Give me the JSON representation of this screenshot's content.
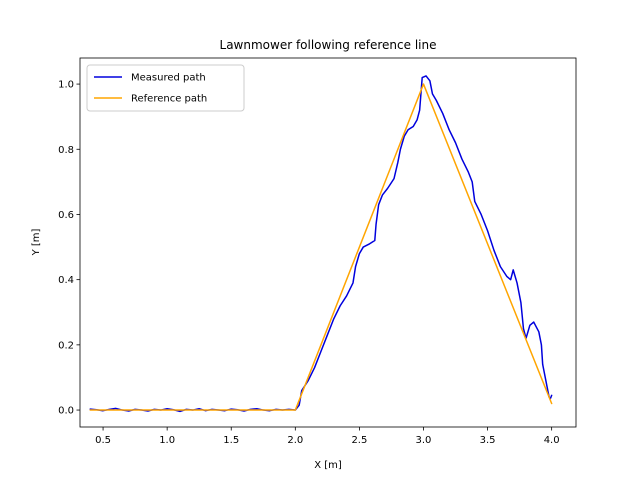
{
  "chart_data": {
    "type": "line",
    "title": "Lawnmower following reference line",
    "xlabel": "X [m]",
    "ylabel": "Y [m]",
    "xlim": [
      0.32,
      4.19
    ],
    "ylim": [
      -0.052,
      1.08
    ],
    "xticks": [
      0.5,
      1.0,
      1.5,
      2.0,
      2.5,
      3.0,
      3.5,
      4.0
    ],
    "yticks": [
      0.0,
      0.2,
      0.4,
      0.6,
      0.8,
      1.0
    ],
    "xtick_labels": [
      "0.5",
      "1.0",
      "1.5",
      "2.0",
      "2.5",
      "3.0",
      "3.5",
      "4.0"
    ],
    "ytick_labels": [
      "0.0",
      "0.2",
      "0.4",
      "0.6",
      "0.8",
      "1.0"
    ],
    "grid": false,
    "legend_position": "top-left",
    "series": [
      {
        "name": "Measured path",
        "color": "#0000dd",
        "points": [
          [
            0.4,
            0.003
          ],
          [
            0.45,
            0.001
          ],
          [
            0.5,
            -0.002
          ],
          [
            0.55,
            0.002
          ],
          [
            0.6,
            0.005
          ],
          [
            0.65,
            0.0
          ],
          [
            0.7,
            -0.003
          ],
          [
            0.75,
            0.002
          ],
          [
            0.8,
            0.0
          ],
          [
            0.85,
            -0.003
          ],
          [
            0.9,
            0.002
          ],
          [
            0.95,
            0.0
          ],
          [
            1.0,
            0.004
          ],
          [
            1.05,
            0.001
          ],
          [
            1.1,
            -0.004
          ],
          [
            1.15,
            0.002
          ],
          [
            1.2,
            0.0
          ],
          [
            1.25,
            0.004
          ],
          [
            1.3,
            -0.002
          ],
          [
            1.35,
            0.002
          ],
          [
            1.4,
            0.0
          ],
          [
            1.45,
            -0.002
          ],
          [
            1.5,
            0.003
          ],
          [
            1.55,
            0.001
          ],
          [
            1.6,
            -0.003
          ],
          [
            1.65,
            0.002
          ],
          [
            1.7,
            0.004
          ],
          [
            1.75,
            0.0
          ],
          [
            1.8,
            -0.002
          ],
          [
            1.85,
            0.002
          ],
          [
            1.9,
            0.0
          ],
          [
            1.95,
            0.002
          ],
          [
            2.0,
            0.0
          ],
          [
            2.03,
            0.015
          ],
          [
            2.05,
            0.06
          ],
          [
            2.1,
            0.09
          ],
          [
            2.15,
            0.13
          ],
          [
            2.2,
            0.18
          ],
          [
            2.25,
            0.23
          ],
          [
            2.3,
            0.28
          ],
          [
            2.35,
            0.32
          ],
          [
            2.4,
            0.35
          ],
          [
            2.45,
            0.39
          ],
          [
            2.47,
            0.44
          ],
          [
            2.5,
            0.48
          ],
          [
            2.53,
            0.5
          ],
          [
            2.58,
            0.51
          ],
          [
            2.62,
            0.52
          ],
          [
            2.63,
            0.57
          ],
          [
            2.65,
            0.63
          ],
          [
            2.68,
            0.66
          ],
          [
            2.72,
            0.68
          ],
          [
            2.77,
            0.71
          ],
          [
            2.8,
            0.76
          ],
          [
            2.82,
            0.8
          ],
          [
            2.85,
            0.84
          ],
          [
            2.88,
            0.86
          ],
          [
            2.92,
            0.87
          ],
          [
            2.95,
            0.89
          ],
          [
            2.97,
            0.92
          ],
          [
            2.98,
            0.97
          ],
          [
            2.99,
            1.02
          ],
          [
            3.02,
            1.025
          ],
          [
            3.05,
            1.01
          ],
          [
            3.07,
            0.97
          ],
          [
            3.1,
            0.95
          ],
          [
            3.15,
            0.91
          ],
          [
            3.2,
            0.86
          ],
          [
            3.25,
            0.82
          ],
          [
            3.3,
            0.77
          ],
          [
            3.35,
            0.73
          ],
          [
            3.38,
            0.7
          ],
          [
            3.4,
            0.64
          ],
          [
            3.45,
            0.6
          ],
          [
            3.5,
            0.55
          ],
          [
            3.55,
            0.49
          ],
          [
            3.6,
            0.44
          ],
          [
            3.65,
            0.41
          ],
          [
            3.68,
            0.4
          ],
          [
            3.7,
            0.43
          ],
          [
            3.73,
            0.39
          ],
          [
            3.76,
            0.33
          ],
          [
            3.78,
            0.25
          ],
          [
            3.8,
            0.22
          ],
          [
            3.83,
            0.26
          ],
          [
            3.86,
            0.27
          ],
          [
            3.9,
            0.24
          ],
          [
            3.92,
            0.2
          ],
          [
            3.93,
            0.14
          ],
          [
            3.96,
            0.08
          ],
          [
            3.98,
            0.04
          ],
          [
            3.99,
            0.035
          ],
          [
            4.0,
            0.045
          ]
        ]
      },
      {
        "name": "Reference path",
        "color": "#ffa500",
        "points": [
          [
            0.4,
            0.0
          ],
          [
            2.0,
            0.0
          ],
          [
            3.0,
            1.0
          ],
          [
            4.0,
            0.02
          ]
        ]
      }
    ]
  }
}
